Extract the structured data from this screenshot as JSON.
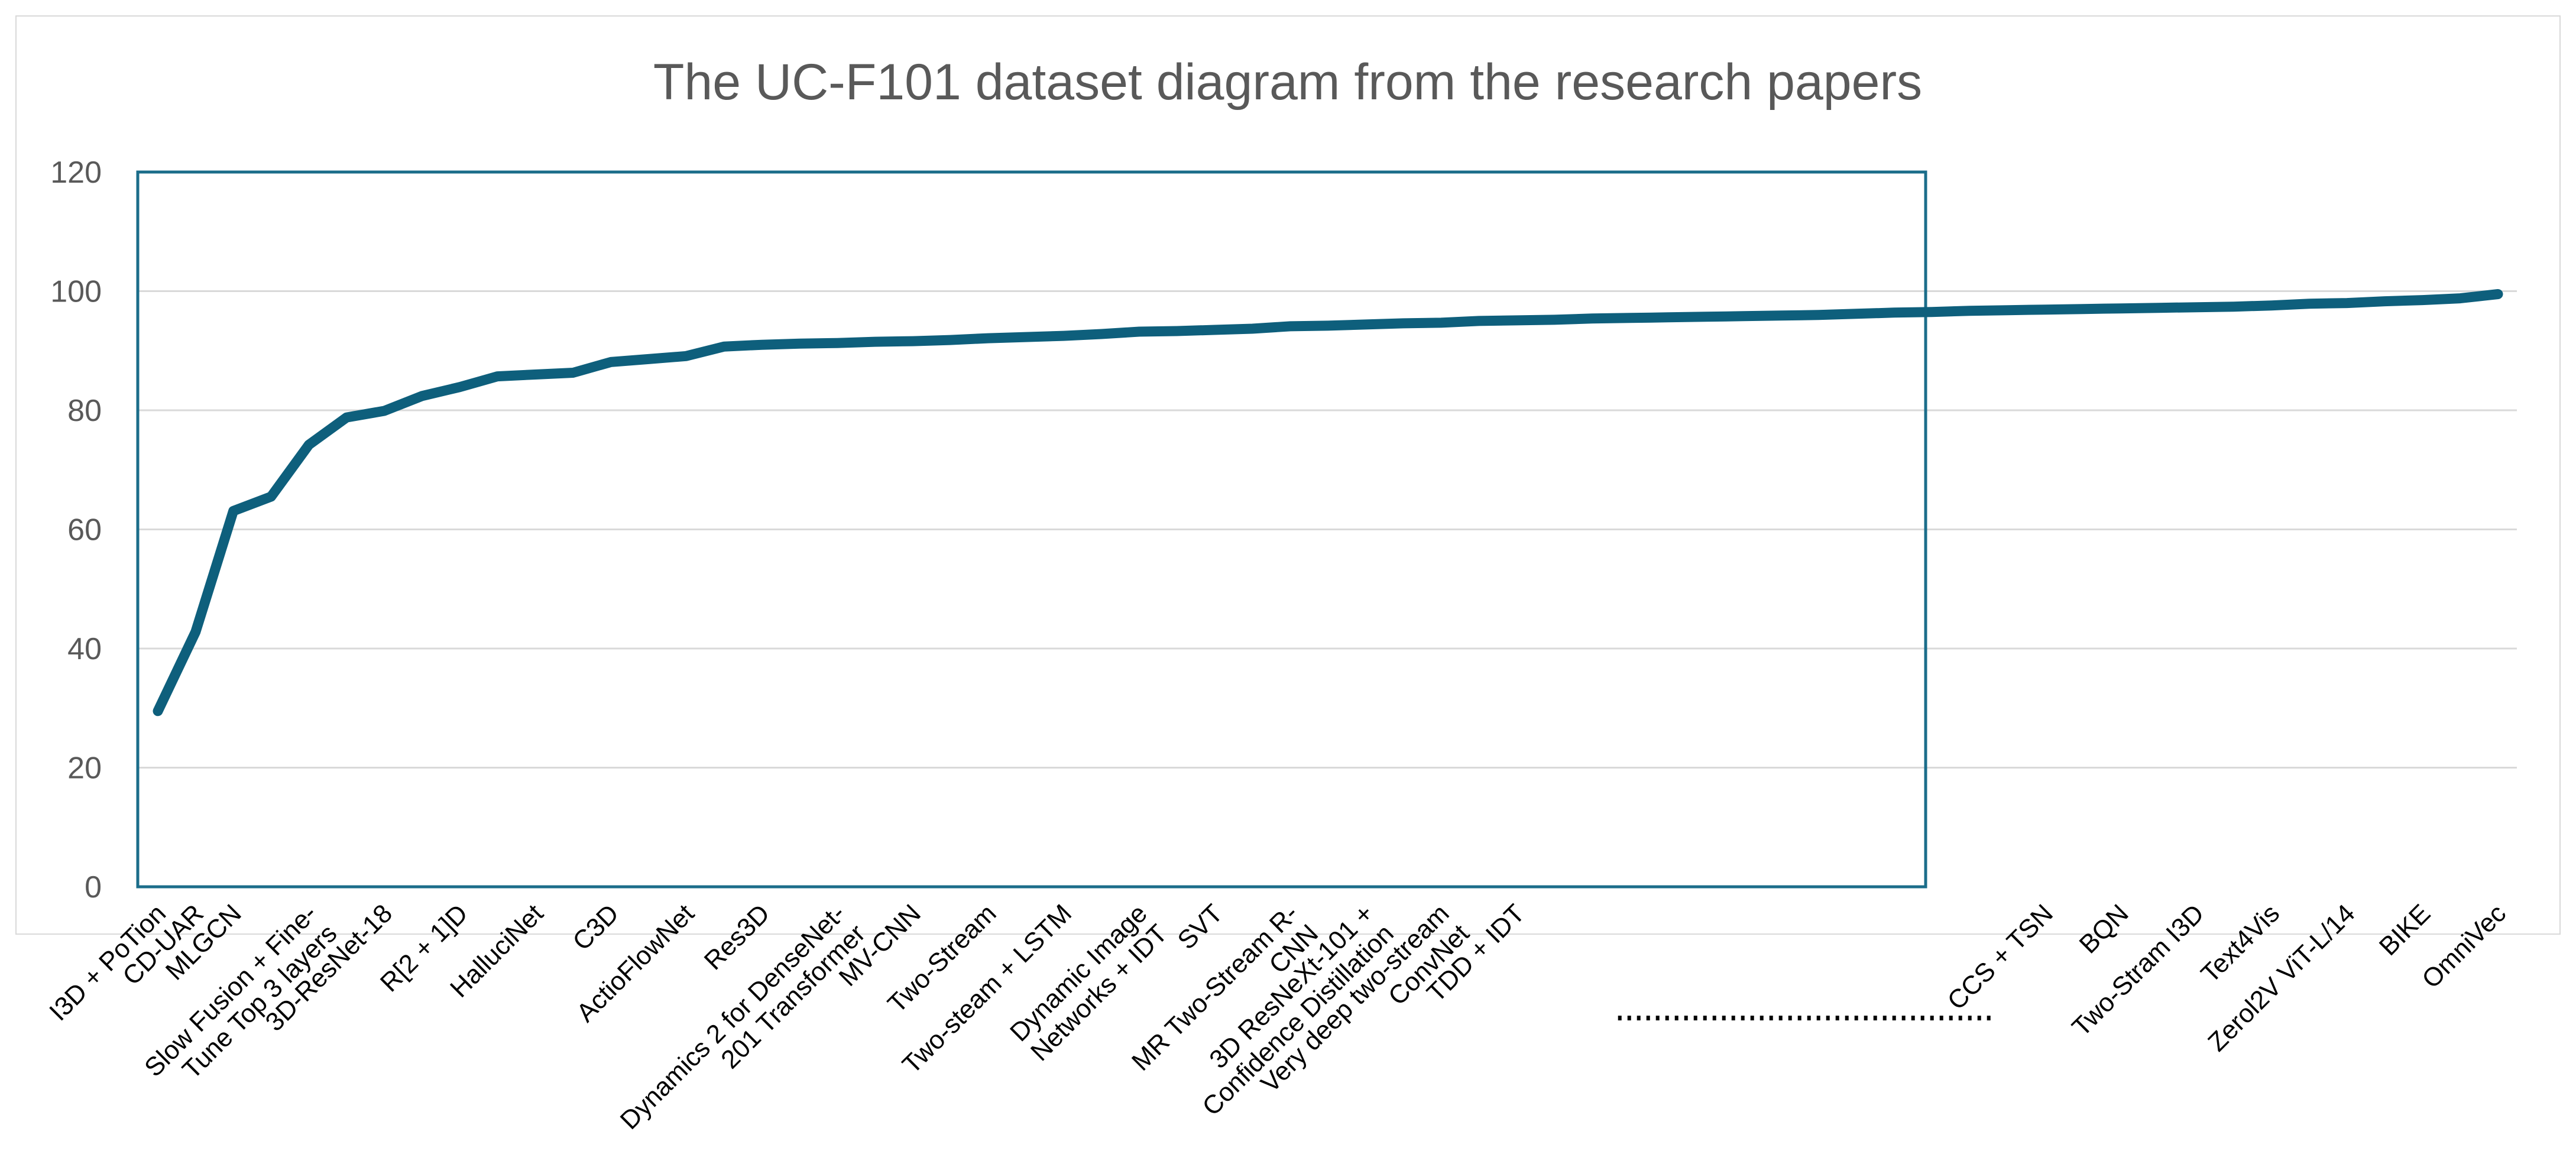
{
  "chart_data": {
    "type": "line",
    "title": "The UC-F101 dataset diagram from the research papers",
    "xlabel": "",
    "ylabel": "",
    "ylim": [
      0,
      120
    ],
    "yticks": [
      0,
      20,
      40,
      60,
      80,
      100,
      120
    ],
    "grid": true,
    "legend": "none",
    "colors": {
      "line": "#0e5f7c",
      "plot_border": "#1b6d8a",
      "grid": "#d9d9d9",
      "text": "#595959"
    },
    "series": [
      {
        "values": [
          29.5,
          42.8,
          63.1,
          65.5,
          74.2,
          78.8,
          79.9,
          82.4,
          83.9,
          85.7,
          86.0,
          86.3,
          88.1,
          88.6,
          89.1,
          90.7,
          91.0,
          91.2,
          91.3,
          91.5,
          91.6,
          91.8,
          92.1,
          92.3,
          92.5,
          92.8,
          93.2,
          93.3,
          93.5,
          93.7,
          94.1,
          94.2,
          94.4,
          94.6,
          94.7,
          95.0,
          95.1,
          95.2,
          95.4,
          95.5,
          95.6,
          95.7,
          95.8,
          95.9,
          96.0,
          96.2,
          96.4,
          96.5,
          96.7,
          96.8,
          96.9,
          97.0,
          97.1,
          97.2,
          97.3,
          97.4,
          97.6,
          97.9,
          98.0,
          98.3,
          98.5,
          98.8,
          99.5
        ]
      }
    ],
    "category_labels": [
      {
        "index": 0,
        "lines": [
          "I3D + PoTion"
        ]
      },
      {
        "index": 1,
        "lines": [
          "CD-UAR"
        ]
      },
      {
        "index": 2,
        "lines": [
          "MLGCN"
        ]
      },
      {
        "index": 4,
        "lines": [
          "Slow Fusion + Fine-",
          "Tune Top 3 layers"
        ]
      },
      {
        "index": 6,
        "lines": [
          "3D-ResNet-18"
        ]
      },
      {
        "index": 8,
        "lines": [
          "R[2 + 1]D"
        ]
      },
      {
        "index": 10,
        "lines": [
          "HalluciNet"
        ]
      },
      {
        "index": 12,
        "lines": [
          "C3D"
        ]
      },
      {
        "index": 14,
        "lines": [
          "ActioFlowNet"
        ]
      },
      {
        "index": 16,
        "lines": [
          "Res3D"
        ]
      },
      {
        "index": 18,
        "lines": [
          "Dynamics 2 for DenseNet-",
          "201 Transformer"
        ]
      },
      {
        "index": 20,
        "lines": [
          "MV-CNN"
        ]
      },
      {
        "index": 22,
        "lines": [
          "Two-Stream"
        ]
      },
      {
        "index": 24,
        "lines": [
          "Two-steam + LSTM"
        ]
      },
      {
        "index": 26,
        "lines": [
          "Dynamic Image",
          "Networks + IDT"
        ]
      },
      {
        "index": 28,
        "lines": [
          "SVT"
        ]
      },
      {
        "index": 30,
        "lines": [
          "MR Two-Stream R-",
          "CNN"
        ]
      },
      {
        "index": 32,
        "lines": [
          "3D ResNeXt-101 +",
          "Confidence Distillation"
        ]
      },
      {
        "index": 34,
        "lines": [
          "Very deep two-stream",
          "ConvNet"
        ]
      },
      {
        "index": 36,
        "lines": [
          "TDD + IDT"
        ]
      },
      {
        "index": 50,
        "lines": [
          "CCS + TSN"
        ]
      },
      {
        "index": 52,
        "lines": [
          "BQN"
        ]
      },
      {
        "index": 54,
        "lines": [
          "Two-Stram I3D"
        ]
      },
      {
        "index": 56,
        "lines": [
          "Text4Vis"
        ]
      },
      {
        "index": 58,
        "lines": [
          "Zerol2V ViT-L/14"
        ]
      },
      {
        "index": 60,
        "lines": [
          "BIKE"
        ]
      },
      {
        "index": 62,
        "lines": [
          "OmniVec"
        ]
      }
    ],
    "ellipsis": {
      "from_index": 39,
      "to_index": 48
    }
  }
}
